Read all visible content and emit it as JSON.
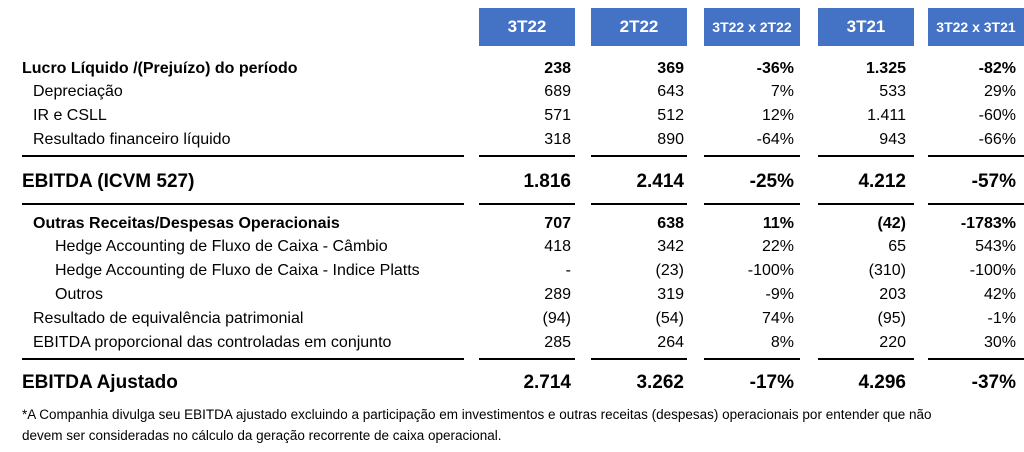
{
  "columns": [
    "3T22",
    "2T22",
    "3T22 x 2T22",
    "3T21",
    "3T22 x 3T21"
  ],
  "rows": {
    "lucro": {
      "label": "Lucro Líquido /(Prejuízo) do período",
      "values": [
        "238",
        "369",
        "-36%",
        "1.325",
        "-82%"
      ]
    },
    "depreciacao": {
      "label": "Depreciação",
      "values": [
        "689",
        "643",
        "7%",
        "533",
        "29%"
      ]
    },
    "ir_csll": {
      "label": "IR e CSLL",
      "values": [
        "571",
        "512",
        "12%",
        "1.411",
        "-60%"
      ]
    },
    "resultado_financeiro": {
      "label": "Resultado financeiro líquido",
      "values": [
        "318",
        "890",
        "-64%",
        "943",
        "-66%"
      ]
    },
    "ebitda_icvm": {
      "label": "EBITDA (ICVM 527)",
      "values": [
        "1.816",
        "2.414",
        "-25%",
        "4.212",
        "-57%"
      ]
    },
    "outras": {
      "label": "Outras Receitas/Despesas Operacionais",
      "values": [
        "707",
        "638",
        "11%",
        "(42)",
        "-1783%"
      ]
    },
    "hedge_cambio": {
      "label": "Hedge Accounting de Fluxo de Caixa - Câmbio",
      "values": [
        "418",
        "342",
        "22%",
        "65",
        "543%"
      ]
    },
    "hedge_platts": {
      "label": "Hedge Accounting de Fluxo de Caixa - Indice Platts",
      "values": [
        "-",
        "(23)",
        "-100%",
        "(310)",
        "-100%"
      ]
    },
    "outros": {
      "label": "Outros",
      "values": [
        "289",
        "319",
        "-9%",
        "203",
        "42%"
      ]
    },
    "equivalencia": {
      "label": "Resultado de equivalência patrimonial",
      "values": [
        "(94)",
        "(54)",
        "74%",
        "(95)",
        "-1%"
      ]
    },
    "ebitda_proporcional": {
      "label": "EBITDA proporcional das controladas em conjunto",
      "values": [
        "285",
        "264",
        "8%",
        "220",
        "30%"
      ]
    },
    "ebitda_ajustado": {
      "label": "EBITDA Ajustado",
      "values": [
        "2.714",
        "3.262",
        "-17%",
        "4.296",
        "-37%"
      ]
    }
  },
  "footnote": {
    "line1": "*A Companhia divulga seu EBITDA ajustado excluindo a participação em investimentos e outras receitas (despesas) operacionais por entender que não",
    "line2": "devem ser consideradas no cálculo da geração recorrente de caixa operacional."
  },
  "colors": {
    "header_bg": "#4472c4",
    "header_text": "#ffffff",
    "text": "#000000"
  }
}
